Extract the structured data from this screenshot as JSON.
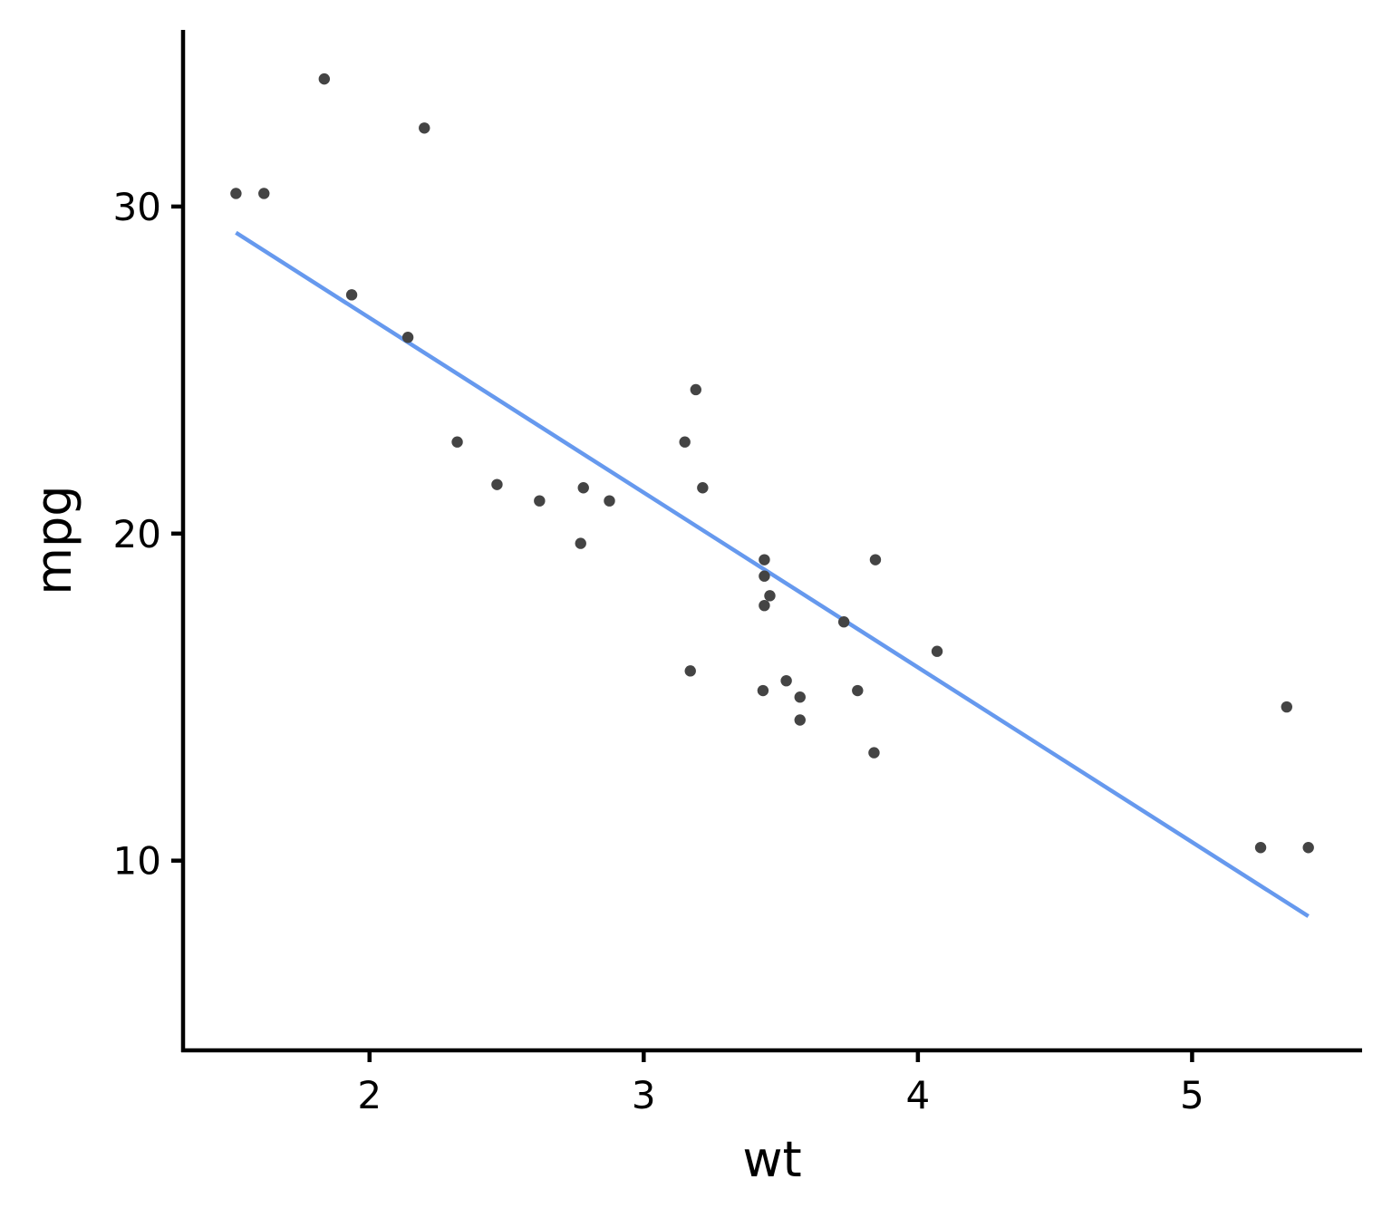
{
  "chart_data": {
    "type": "scatter",
    "xlabel": "wt",
    "ylabel": "mpg",
    "xlim": [
      1.32,
      5.62
    ],
    "ylim": [
      4.2,
      35.4
    ],
    "grid": false,
    "x_ticks": [
      2,
      3,
      4,
      5
    ],
    "y_ticks": [
      10,
      20,
      30
    ],
    "point_color": "#444444",
    "line_color": "#6699ee",
    "points": [
      {
        "x": 1.513,
        "y": 30.4
      },
      {
        "x": 1.615,
        "y": 30.4
      },
      {
        "x": 1.835,
        "y": 33.9
      },
      {
        "x": 1.935,
        "y": 27.3
      },
      {
        "x": 2.14,
        "y": 26.0
      },
      {
        "x": 2.2,
        "y": 32.4
      },
      {
        "x": 2.32,
        "y": 22.8
      },
      {
        "x": 2.465,
        "y": 21.5
      },
      {
        "x": 2.62,
        "y": 21.0
      },
      {
        "x": 2.77,
        "y": 19.7
      },
      {
        "x": 2.78,
        "y": 21.4
      },
      {
        "x": 2.875,
        "y": 21.0
      },
      {
        "x": 3.15,
        "y": 22.8
      },
      {
        "x": 3.17,
        "y": 15.8
      },
      {
        "x": 3.19,
        "y": 24.4
      },
      {
        "x": 3.215,
        "y": 21.4
      },
      {
        "x": 3.435,
        "y": 15.2
      },
      {
        "x": 3.44,
        "y": 18.7
      },
      {
        "x": 3.44,
        "y": 19.2
      },
      {
        "x": 3.44,
        "y": 17.8
      },
      {
        "x": 3.46,
        "y": 18.1
      },
      {
        "x": 3.52,
        "y": 15.5
      },
      {
        "x": 3.57,
        "y": 14.3
      },
      {
        "x": 3.57,
        "y": 15.0
      },
      {
        "x": 3.73,
        "y": 17.3
      },
      {
        "x": 3.78,
        "y": 15.2
      },
      {
        "x": 3.84,
        "y": 13.3
      },
      {
        "x": 3.845,
        "y": 19.2
      },
      {
        "x": 4.07,
        "y": 16.4
      },
      {
        "x": 5.25,
        "y": 10.4
      },
      {
        "x": 5.345,
        "y": 14.7
      },
      {
        "x": 5.424,
        "y": 10.4
      }
    ],
    "trend_line": {
      "x": [
        1.513,
        5.424
      ],
      "y": [
        29.2,
        8.3
      ]
    }
  }
}
